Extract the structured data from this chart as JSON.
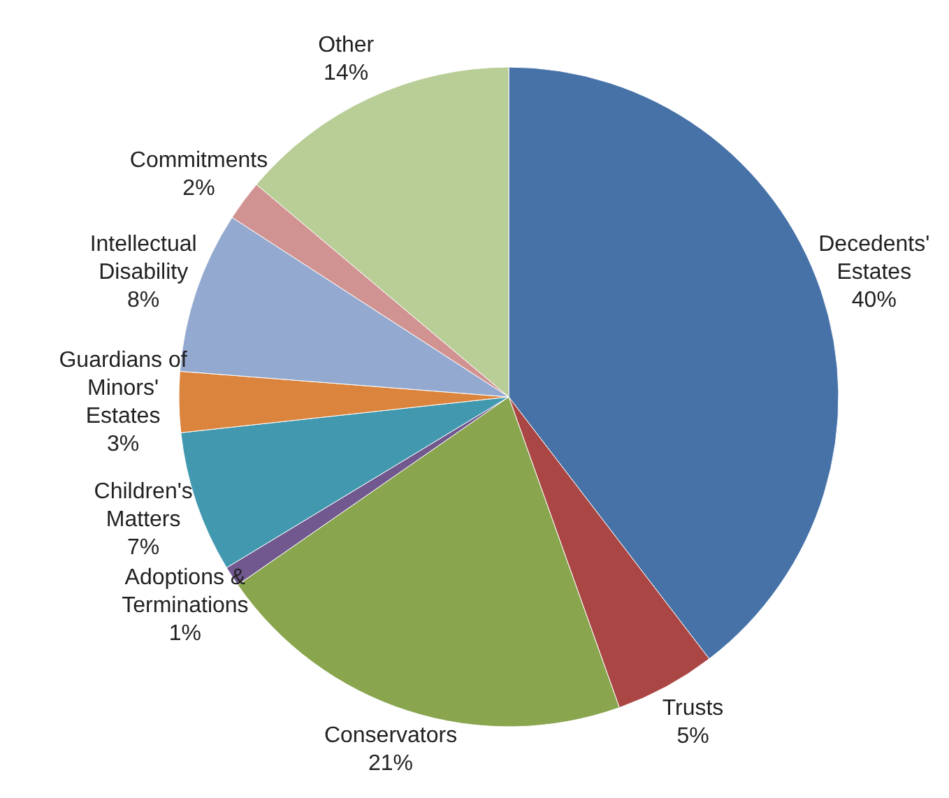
{
  "chart_data": {
    "type": "pie",
    "categories": [
      "Decedents' Estates",
      "Trusts",
      "Conservators",
      "Adoptions & Terminations",
      "Children's Matters",
      "Guardians of Minors' Estates",
      "Intellectual Disability",
      "Commitments",
      "Other"
    ],
    "values": [
      40,
      5,
      21,
      1,
      7,
      3,
      8,
      2,
      14
    ],
    "colors": [
      "#4672a8",
      "#aa4643",
      "#89a54e",
      "#71588f",
      "#4198af",
      "#db843d",
      "#93a9cf",
      "#d19392",
      "#b9cd96"
    ],
    "value_labels": [
      "40%",
      "5%",
      "21%",
      "1%",
      "7%",
      "3%",
      "8%",
      "2%",
      "14%"
    ]
  }
}
